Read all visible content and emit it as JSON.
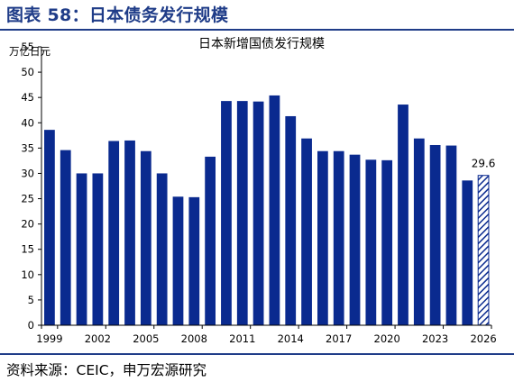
{
  "figure": {
    "title": "图表 58：日本债务发行规模",
    "source": "资料来源：CEIC，申万宏源研究"
  },
  "chart_data": {
    "type": "bar",
    "title": "日本新增国债发行规模",
    "ylabel": "万亿日元",
    "xlabel": "",
    "ylim": [
      0,
      55
    ],
    "yticks": [
      0,
      5,
      10,
      15,
      20,
      25,
      30,
      35,
      40,
      45,
      50,
      55
    ],
    "xtick_labels": [
      "1999",
      "2002",
      "2005",
      "2008",
      "2011",
      "2014",
      "2017",
      "2020",
      "2023",
      "2026"
    ],
    "categories": [
      "1999",
      "2000",
      "2001",
      "2002",
      "2003",
      "2004",
      "2005",
      "2006",
      "2007",
      "2008",
      "2009",
      "2010",
      "2011",
      "2012",
      "2013",
      "2014",
      "2015",
      "2016",
      "2017",
      "2018",
      "2019",
      "2020",
      "2021",
      "2022",
      "2023",
      "2024",
      "2025"
    ],
    "values": [
      38.6,
      34.6,
      30.0,
      30.0,
      36.4,
      36.5,
      34.4,
      30.0,
      25.4,
      25.3,
      33.3,
      44.3,
      44.3,
      44.2,
      45.4,
      41.3,
      36.9,
      34.4,
      34.4,
      33.7,
      32.7,
      32.6,
      43.6,
      36.9,
      35.6,
      35.5,
      28.6
    ],
    "projected": {
      "category": "2026",
      "value": 29.6,
      "label": "29.6",
      "style": "hatched"
    },
    "colors": {
      "bar": "#0a2a8f",
      "hatch": "#0a2a8f",
      "axis": "#000000"
    },
    "grid": false,
    "legend": "none"
  }
}
